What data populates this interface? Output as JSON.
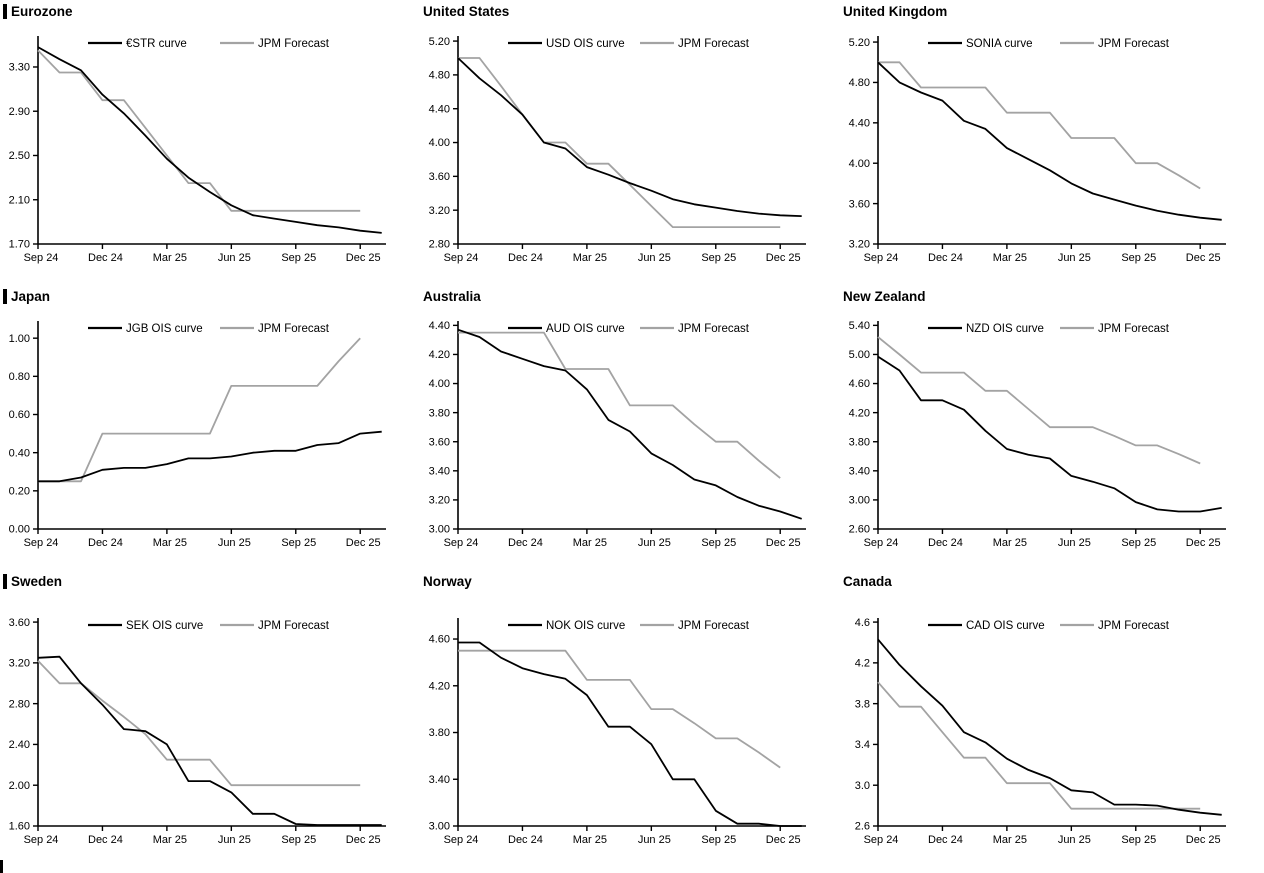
{
  "page": {
    "background": "#ffffff"
  },
  "colors": {
    "series_black": "#000000",
    "series_gray": "#a3a3a3",
    "axis": "#000000",
    "text": "#000000"
  },
  "x_labels": [
    "Sep 24",
    "Dec 24",
    "Mar 25",
    "Jun 25",
    "Sep 25",
    "Dec 25"
  ],
  "chart_data": [
    {
      "type": "line",
      "title": "Eurozone",
      "ylim": [
        1.7,
        3.58
      ],
      "y_ticks": [
        1.7,
        2.1,
        2.5,
        2.9,
        3.3
      ],
      "y_tick_labels": [
        "1.70",
        "2.10",
        "2.50",
        "2.90",
        "3.30"
      ],
      "x_tick_positions": [
        0,
        3,
        6,
        9,
        12,
        15
      ],
      "x_labels": [
        "Sep 24",
        "Dec 24",
        "Mar 25",
        "Jun 25",
        "Sep 25",
        "Dec 25"
      ],
      "grid": false,
      "legend_position": "top-center",
      "series": [
        {
          "name": "€STR curve",
          "color": "#000000",
          "values": [
            3.48,
            3.37,
            3.27,
            3.05,
            2.88,
            2.68,
            2.47,
            2.3,
            2.17,
            2.05,
            1.96,
            1.93,
            1.9,
            1.87,
            1.85,
            1.82,
            1.8
          ]
        },
        {
          "name": "JPM Forecast",
          "color": "#a3a3a3",
          "values": [
            3.45,
            3.25,
            3.25,
            3.0,
            3.0,
            2.75,
            2.5,
            2.25,
            2.25,
            2.0,
            2.0,
            2.0,
            2.0,
            2.0,
            2.0,
            2.0
          ]
        }
      ]
    },
    {
      "type": "line",
      "title": "United States",
      "ylim": [
        2.8,
        5.26
      ],
      "y_ticks": [
        2.8,
        3.2,
        3.6,
        4.0,
        4.4,
        4.8,
        5.2
      ],
      "y_tick_labels": [
        "2.80",
        "3.20",
        "3.60",
        "4.00",
        "4.40",
        "4.80",
        "5.20"
      ],
      "x_tick_positions": [
        0,
        3,
        6,
        9,
        12,
        15
      ],
      "x_labels": [
        "Sep 24",
        "Dec 24",
        "Mar 25",
        "Jun 25",
        "Sep 25",
        "Dec 25"
      ],
      "grid": false,
      "legend_position": "top-center",
      "series": [
        {
          "name": "USD OIS curve",
          "color": "#000000",
          "values": [
            5.0,
            4.76,
            4.56,
            4.33,
            4.0,
            3.93,
            3.71,
            3.62,
            3.52,
            3.43,
            3.33,
            3.27,
            3.23,
            3.19,
            3.16,
            3.14,
            3.13
          ]
        },
        {
          "name": "JPM Forecast",
          "color": "#a3a3a3",
          "values": [
            5.0,
            5.0,
            4.67,
            4.33,
            4.0,
            4.0,
            3.75,
            3.75,
            3.5,
            3.25,
            3.0,
            3.0,
            3.0,
            3.0,
            3.0,
            3.0
          ]
        }
      ]
    },
    {
      "type": "line",
      "title": "United Kingdom",
      "ylim": [
        3.2,
        5.26
      ],
      "y_ticks": [
        3.2,
        3.6,
        4.0,
        4.4,
        4.8,
        5.2
      ],
      "y_tick_labels": [
        "3.20",
        "3.60",
        "4.00",
        "4.40",
        "4.80",
        "5.20"
      ],
      "x_tick_positions": [
        0,
        3,
        6,
        9,
        12,
        15
      ],
      "x_labels": [
        "Sep 24",
        "Dec 24",
        "Mar 25",
        "Jun 25",
        "Sep 25",
        "Dec 25"
      ],
      "grid": false,
      "legend_position": "top-center",
      "series": [
        {
          "name": "SONIA curve",
          "color": "#000000",
          "values": [
            5.0,
            4.8,
            4.7,
            4.62,
            4.42,
            4.34,
            4.15,
            4.04,
            3.93,
            3.8,
            3.7,
            3.64,
            3.58,
            3.53,
            3.49,
            3.46,
            3.44
          ]
        },
        {
          "name": "JPM Forecast",
          "color": "#a3a3a3",
          "values": [
            5.0,
            5.0,
            4.75,
            4.75,
            4.75,
            4.75,
            4.5,
            4.5,
            4.5,
            4.25,
            4.25,
            4.25,
            4.0,
            4.0,
            3.88,
            3.75
          ]
        }
      ]
    },
    {
      "type": "line",
      "title": "Japan",
      "ylim": [
        0.0,
        1.09
      ],
      "y_ticks": [
        0.0,
        0.2,
        0.4,
        0.6,
        0.8,
        1.0
      ],
      "y_tick_labels": [
        "0.00",
        "0.20",
        "0.40",
        "0.60",
        "0.80",
        "1.00"
      ],
      "x_tick_positions": [
        0,
        3,
        6,
        9,
        12,
        15
      ],
      "x_labels": [
        "Sep 24",
        "Dec 24",
        "Mar 25",
        "Jun 25",
        "Sep 25",
        "Dec 25"
      ],
      "grid": false,
      "legend_position": "top-center",
      "series": [
        {
          "name": "JGB OIS curve",
          "color": "#000000",
          "values": [
            0.25,
            0.25,
            0.27,
            0.31,
            0.32,
            0.32,
            0.34,
            0.37,
            0.37,
            0.38,
            0.4,
            0.41,
            0.41,
            0.44,
            0.45,
            0.5,
            0.51
          ]
        },
        {
          "name": "JPM Forecast",
          "color": "#a3a3a3",
          "values": [
            0.25,
            0.25,
            0.25,
            0.5,
            0.5,
            0.5,
            0.5,
            0.5,
            0.5,
            0.75,
            0.75,
            0.75,
            0.75,
            0.75,
            0.88,
            1.0
          ]
        }
      ]
    },
    {
      "type": "line",
      "title": "Australia",
      "ylim": [
        3.0,
        4.43
      ],
      "y_ticks": [
        3.0,
        3.2,
        3.4,
        3.6,
        3.8,
        4.0,
        4.2,
        4.4
      ],
      "y_tick_labels": [
        "3.00",
        "3.20",
        "3.40",
        "3.60",
        "3.80",
        "4.00",
        "4.20",
        "4.40"
      ],
      "x_tick_positions": [
        0,
        3,
        6,
        9,
        12,
        15
      ],
      "x_labels": [
        "Sep 24",
        "Dec 24",
        "Mar 25",
        "Jun 25",
        "Sep 25",
        "Dec 25"
      ],
      "grid": false,
      "legend_position": "top-center",
      "series": [
        {
          "name": "AUD OIS curve",
          "color": "#000000",
          "values": [
            4.37,
            4.32,
            4.22,
            4.17,
            4.12,
            4.09,
            3.96,
            3.75,
            3.67,
            3.52,
            3.44,
            3.34,
            3.3,
            3.22,
            3.16,
            3.12,
            3.07
          ]
        },
        {
          "name": "JPM Forecast",
          "color": "#a3a3a3",
          "values": [
            4.35,
            4.35,
            4.35,
            4.35,
            4.35,
            4.1,
            4.1,
            4.1,
            3.85,
            3.85,
            3.85,
            3.72,
            3.6,
            3.6,
            3.47,
            3.35
          ]
        }
      ]
    },
    {
      "type": "line",
      "title": "New Zealand",
      "ylim": [
        2.6,
        5.46
      ],
      "y_ticks": [
        2.6,
        3.0,
        3.4,
        3.8,
        4.2,
        4.6,
        5.0,
        5.4
      ],
      "y_tick_labels": [
        "2.60",
        "3.00",
        "3.40",
        "3.80",
        "4.20",
        "4.60",
        "5.00",
        "5.40"
      ],
      "x_tick_positions": [
        0,
        3,
        6,
        9,
        12,
        15
      ],
      "x_labels": [
        "Sep 24",
        "Dec 24",
        "Mar 25",
        "Jun 25",
        "Sep 25",
        "Dec 25"
      ],
      "grid": false,
      "legend_position": "top-center",
      "series": [
        {
          "name": "NZD OIS curve",
          "color": "#000000",
          "values": [
            4.97,
            4.78,
            4.37,
            4.37,
            4.24,
            3.95,
            3.7,
            3.62,
            3.57,
            3.33,
            3.25,
            3.16,
            2.97,
            2.87,
            2.84,
            2.84,
            2.89
          ]
        },
        {
          "name": "JPM Forecast",
          "color": "#a3a3a3",
          "values": [
            5.24,
            5.0,
            4.75,
            4.75,
            4.75,
            4.5,
            4.5,
            4.25,
            4.0,
            4.0,
            4.0,
            3.88,
            3.75,
            3.75,
            3.63,
            3.5
          ]
        }
      ]
    },
    {
      "type": "line",
      "title": "Sweden",
      "ylim": [
        1.6,
        3.64
      ],
      "y_ticks": [
        1.6,
        2.0,
        2.4,
        2.8,
        3.2,
        3.6
      ],
      "y_tick_labels": [
        "1.60",
        "2.00",
        "2.40",
        "2.80",
        "3.20",
        "3.60"
      ],
      "x_tick_positions": [
        0,
        3,
        6,
        9,
        12,
        15
      ],
      "x_labels": [
        "Sep 24",
        "Dec 24",
        "Mar 25",
        "Jun 25",
        "Sep 25",
        "Dec 25"
      ],
      "grid": false,
      "legend_position": "top-center",
      "series": [
        {
          "name": "SEK OIS curve",
          "color": "#000000",
          "values": [
            3.25,
            3.26,
            3.0,
            2.79,
            2.55,
            2.53,
            2.4,
            2.04,
            2.04,
            1.93,
            1.72,
            1.72,
            1.62,
            1.61,
            1.61,
            1.61,
            1.61
          ]
        },
        {
          "name": "JPM Forecast",
          "color": "#a3a3a3",
          "values": [
            3.22,
            3.0,
            3.0,
            2.83,
            2.67,
            2.5,
            2.25,
            2.25,
            2.25,
            2.0,
            2.0,
            2.0,
            2.0,
            2.0,
            2.0,
            2.0
          ]
        }
      ]
    },
    {
      "type": "line",
      "title": "Norway",
      "ylim": [
        3.0,
        4.78
      ],
      "y_ticks": [
        3.0,
        3.4,
        3.8,
        4.2,
        4.6
      ],
      "y_tick_labels": [
        "3.00",
        "3.40",
        "3.80",
        "4.20",
        "4.60"
      ],
      "x_tick_positions": [
        0,
        3,
        6,
        9,
        12,
        15
      ],
      "x_labels": [
        "Sep 24",
        "Dec 24",
        "Mar 25",
        "Jun 25",
        "Sep 25",
        "Dec 25"
      ],
      "grid": false,
      "legend_position": "top-center",
      "series": [
        {
          "name": "NOK OIS curve",
          "color": "#000000",
          "values": [
            4.57,
            4.57,
            4.44,
            4.35,
            4.3,
            4.26,
            4.12,
            3.85,
            3.85,
            3.7,
            3.4,
            3.4,
            3.13,
            3.02,
            3.02,
            3.0,
            2.98
          ]
        },
        {
          "name": "JPM Forecast",
          "color": "#a3a3a3",
          "values": [
            4.5,
            4.5,
            4.5,
            4.5,
            4.5,
            4.5,
            4.25,
            4.25,
            4.25,
            4.0,
            4.0,
            3.88,
            3.75,
            3.75,
            3.63,
            3.5
          ]
        }
      ]
    },
    {
      "type": "line",
      "title": "Canada",
      "ylim": [
        2.6,
        4.64
      ],
      "y_ticks": [
        2.6,
        3.0,
        3.4,
        3.8,
        4.2,
        4.6
      ],
      "y_tick_labels": [
        "2.6",
        "3.0",
        "3.4",
        "3.8",
        "4.2",
        "4.6"
      ],
      "x_tick_positions": [
        0,
        3,
        6,
        9,
        12,
        15
      ],
      "x_labels": [
        "Sep 24",
        "Dec 24",
        "Mar 25",
        "Jun 25",
        "Sep 25",
        "Dec 25"
      ],
      "grid": false,
      "legend_position": "top-center",
      "series": [
        {
          "name": "CAD OIS curve",
          "color": "#000000",
          "values": [
            4.43,
            4.18,
            3.97,
            3.78,
            3.52,
            3.42,
            3.26,
            3.15,
            3.07,
            2.95,
            2.93,
            2.81,
            2.81,
            2.8,
            2.76,
            2.73,
            2.71
          ]
        },
        {
          "name": "JPM Forecast",
          "color": "#a3a3a3",
          "values": [
            4.01,
            3.77,
            3.77,
            3.52,
            3.27,
            3.27,
            3.02,
            3.02,
            3.02,
            2.77,
            2.77,
            2.77,
            2.77,
            2.77,
            2.77,
            2.77
          ]
        }
      ]
    }
  ]
}
